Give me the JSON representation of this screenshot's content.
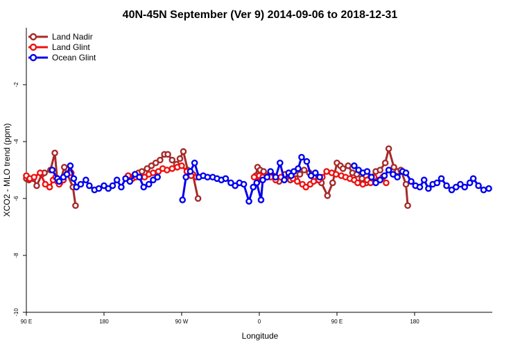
{
  "chart_data": {
    "type": "line",
    "title": "40N-45N September (Ver 9)   2014-09-06 to 2018-12-31",
    "xlabel": "Longitude",
    "ylabel": "XCO2 - MLO trend (ppm)",
    "xlim": [
      90,
      630
    ],
    "ylim": [
      -10,
      0
    ],
    "x_ticks": [
      {
        "value": 90,
        "label": "90 E"
      },
      {
        "value": 180,
        "label": "180"
      },
      {
        "value": 270,
        "label": "90 W"
      },
      {
        "value": 360,
        "label": "0"
      },
      {
        "value": 450,
        "label": "90 E"
      },
      {
        "value": 540,
        "label": "180"
      }
    ],
    "y_ticks": [
      {
        "value": -2,
        "label": "-2"
      },
      {
        "value": -4,
        "label": "-4"
      },
      {
        "value": -6,
        "label": "-6"
      },
      {
        "value": -8,
        "label": "-8"
      },
      {
        "value": -10,
        "label": "-10"
      }
    ],
    "grid": false,
    "legend_position": "top-left",
    "surface_strip": {
      "y_range": [
        -0.7,
        -1.0
      ],
      "ocean_color": "#a8bfe0",
      "land_color": "#f7d679",
      "land_segments": [
        [
          90,
          142
        ],
        [
          155,
          167
        ],
        [
          238,
          285
        ],
        [
          285,
          300
        ],
        [
          356,
          390
        ],
        [
          419,
          473
        ],
        [
          490,
          534
        ],
        [
          546,
          560
        ]
      ]
    },
    "series": [
      {
        "name": "Land Nadir",
        "color": "#a52a2a",
        "points": [
          [
            90,
            -5.3
          ],
          [
            93,
            -5.35
          ],
          [
            98,
            -5.3
          ],
          [
            102,
            -5.55
          ],
          [
            108,
            -5.15
          ],
          [
            111,
            -5.1
          ],
          [
            118,
            -5.0
          ],
          [
            123,
            -4.4
          ],
          [
            126,
            -5.4
          ],
          [
            129,
            -5.45
          ],
          [
            134,
            -4.9
          ],
          [
            144,
            -5.6
          ],
          [
            147,
            -6.25
          ],
          [
            208,
            -5.2
          ],
          [
            216,
            -5.15
          ],
          [
            220,
            -5.1
          ],
          [
            224,
            -5.05
          ],
          [
            230,
            -4.95
          ],
          [
            235,
            -4.85
          ],
          [
            240,
            -4.75
          ],
          [
            245,
            -4.65
          ],
          [
            250,
            -4.45
          ],
          [
            254,
            -4.45
          ],
          [
            259,
            -4.65
          ],
          [
            264,
            -4.8
          ],
          [
            268,
            -4.6
          ],
          [
            272,
            -4.35
          ],
          [
            277,
            -5.0
          ],
          [
            283,
            -5.15
          ],
          [
            289,
            -6.0
          ],
          [
            356,
            -5.2
          ],
          [
            358,
            -4.9
          ],
          [
            361,
            -5.0
          ],
          [
            365,
            -5.05
          ],
          [
            370,
            -5.2
          ],
          [
            376,
            -5.2
          ],
          [
            383,
            -5.4
          ],
          [
            390,
            -5.3
          ],
          [
            396,
            -5.35
          ],
          [
            402,
            -5.3
          ],
          [
            407,
            -5.15
          ],
          [
            412,
            -5.0
          ],
          [
            418,
            -5.1
          ],
          [
            423,
            -5.25
          ],
          [
            428,
            -5.35
          ],
          [
            432,
            -5.45
          ],
          [
            439,
            -5.9
          ],
          [
            445,
            -5.45
          ],
          [
            450,
            -4.75
          ],
          [
            454,
            -4.85
          ],
          [
            457,
            -4.95
          ],
          [
            463,
            -4.85
          ],
          [
            468,
            -5.1
          ],
          [
            473,
            -5.15
          ],
          [
            479,
            -5.3
          ],
          [
            484,
            -5.45
          ],
          [
            489,
            -5.25
          ],
          [
            495,
            -5.05
          ],
          [
            500,
            -5.0
          ],
          [
            506,
            -4.75
          ],
          [
            510,
            -4.25
          ],
          [
            516,
            -4.9
          ],
          [
            520,
            -5.05
          ],
          [
            524,
            -5.0
          ],
          [
            530,
            -5.5
          ],
          [
            532,
            -6.25
          ]
        ]
      },
      {
        "name": "Land Glint",
        "color": "#ee1111",
        "points": [
          [
            90,
            -5.2
          ],
          [
            94,
            -5.3
          ],
          [
            99,
            -5.25
          ],
          [
            106,
            -5.1
          ],
          [
            112,
            -5.5
          ],
          [
            117,
            -5.6
          ],
          [
            121,
            -5.35
          ],
          [
            124,
            -5.25
          ],
          [
            128,
            -5.5
          ],
          [
            133,
            -5.35
          ],
          [
            137,
            -5.15
          ],
          [
            142,
            -5.1
          ],
          [
            208,
            -5.2
          ],
          [
            213,
            -5.3
          ],
          [
            217,
            -5.25
          ],
          [
            222,
            -5.25
          ],
          [
            227,
            -5.25
          ],
          [
            232,
            -5.15
          ],
          [
            237,
            -5.1
          ],
          [
            243,
            -5.05
          ],
          [
            248,
            -4.95
          ],
          [
            253,
            -5.0
          ],
          [
            259,
            -4.95
          ],
          [
            265,
            -4.9
          ],
          [
            270,
            -4.85
          ],
          [
            276,
            -5.05
          ],
          [
            281,
            -5.2
          ],
          [
            287,
            -5.25
          ],
          [
            354,
            -5.25
          ],
          [
            358,
            -5.4
          ],
          [
            360,
            -5.2
          ],
          [
            364,
            -5.25
          ],
          [
            369,
            -5.2
          ],
          [
            373,
            -5.25
          ],
          [
            379,
            -5.35
          ],
          [
            385,
            -5.25
          ],
          [
            390,
            -5.15
          ],
          [
            395,
            -5.2
          ],
          [
            399,
            -5.3
          ],
          [
            404,
            -5.4
          ],
          [
            410,
            -5.5
          ],
          [
            414,
            -5.6
          ],
          [
            419,
            -5.5
          ],
          [
            423,
            -5.4
          ],
          [
            429,
            -5.35
          ],
          [
            433,
            -5.25
          ],
          [
            438,
            -5.05
          ],
          [
            444,
            -5.1
          ],
          [
            449,
            -5.15
          ],
          [
            455,
            -5.2
          ],
          [
            460,
            -5.25
          ],
          [
            465,
            -5.3
          ],
          [
            470,
            -5.35
          ],
          [
            474,
            -5.45
          ],
          [
            480,
            -5.5
          ],
          [
            485,
            -5.35
          ],
          [
            489,
            -5.45
          ],
          [
            493,
            -5.25
          ],
          [
            499,
            -5.35
          ],
          [
            503,
            -5.25
          ],
          [
            507,
            -5.45
          ]
        ]
      },
      {
        "name": "Ocean Glint",
        "color": "#0000ee",
        "points": [
          [
            120,
            -5.0
          ],
          [
            126,
            -5.3
          ],
          [
            128,
            -5.4
          ],
          [
            133,
            -5.25
          ],
          [
            137,
            -5.15
          ],
          [
            141,
            -4.85
          ],
          [
            145,
            -5.3
          ],
          [
            148,
            -5.6
          ],
          [
            153,
            -5.5
          ],
          [
            159,
            -5.35
          ],
          [
            163,
            -5.55
          ],
          [
            169,
            -5.7
          ],
          [
            174,
            -5.65
          ],
          [
            180,
            -5.55
          ],
          [
            185,
            -5.65
          ],
          [
            190,
            -5.55
          ],
          [
            195,
            -5.35
          ],
          [
            200,
            -5.6
          ],
          [
            205,
            -5.3
          ],
          [
            210,
            -5.4
          ],
          [
            216,
            -5.15
          ],
          [
            221,
            -5.25
          ],
          [
            226,
            -5.6
          ],
          [
            232,
            -5.5
          ],
          [
            237,
            -5.35
          ],
          [
            242,
            -5.25
          ],
          [
            271,
            -6.05
          ],
          [
            275,
            -5.25
          ],
          [
            280,
            -5.05
          ],
          [
            285,
            -4.75
          ],
          [
            290,
            -5.25
          ],
          [
            295,
            -5.2
          ],
          [
            300,
            -5.25
          ],
          [
            306,
            -5.25
          ],
          [
            311,
            -5.3
          ],
          [
            316,
            -5.35
          ],
          [
            321,
            -5.3
          ],
          [
            327,
            -5.45
          ],
          [
            332,
            -5.55
          ],
          [
            337,
            -5.45
          ],
          [
            342,
            -5.5
          ],
          [
            348,
            -6.1
          ],
          [
            353,
            -5.6
          ],
          [
            357,
            -5.45
          ],
          [
            362,
            -6.05
          ],
          [
            364,
            -5.35
          ],
          [
            369,
            -5.25
          ],
          [
            373,
            -5.05
          ],
          [
            379,
            -5.25
          ],
          [
            384,
            -4.75
          ],
          [
            389,
            -5.35
          ],
          [
            394,
            -5.1
          ],
          [
            397,
            -5.2
          ],
          [
            400,
            -5.05
          ],
          [
            405,
            -4.95
          ],
          [
            409,
            -4.55
          ],
          [
            415,
            -4.7
          ],
          [
            420,
            -5.2
          ],
          [
            425,
            -5.1
          ],
          [
            430,
            -5.25
          ],
          [
            470,
            -4.85
          ],
          [
            475,
            -5.0
          ],
          [
            480,
            -5.1
          ],
          [
            485,
            -5.05
          ],
          [
            490,
            -5.25
          ],
          [
            495,
            -5.45
          ],
          [
            500,
            -5.35
          ],
          [
            505,
            -5.2
          ],
          [
            510,
            -5.0
          ],
          [
            515,
            -5.15
          ],
          [
            520,
            -5.25
          ],
          [
            526,
            -5.05
          ],
          [
            530,
            -5.1
          ],
          [
            536,
            -5.4
          ],
          [
            541,
            -5.55
          ],
          [
            546,
            -5.6
          ],
          [
            551,
            -5.35
          ],
          [
            556,
            -5.65
          ],
          [
            561,
            -5.5
          ],
          [
            566,
            -5.45
          ],
          [
            571,
            -5.3
          ],
          [
            577,
            -5.55
          ],
          [
            583,
            -5.7
          ],
          [
            588,
            -5.6
          ],
          [
            593,
            -5.5
          ],
          [
            598,
            -5.6
          ],
          [
            604,
            -5.45
          ],
          [
            608,
            -5.3
          ],
          [
            614,
            -5.55
          ],
          [
            620,
            -5.7
          ],
          [
            626,
            -5.65
          ]
        ]
      }
    ]
  }
}
